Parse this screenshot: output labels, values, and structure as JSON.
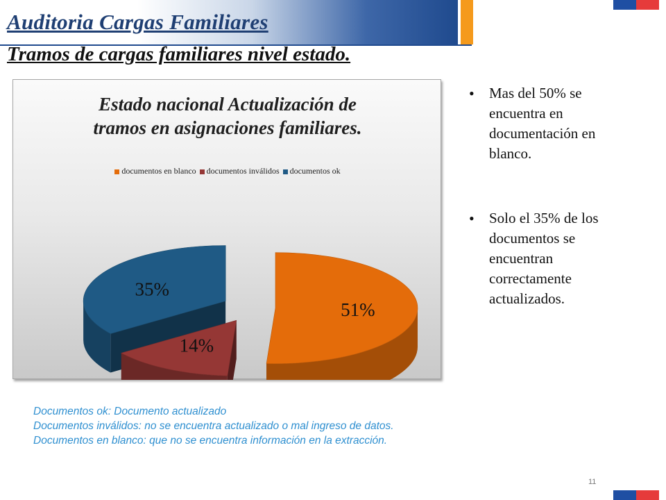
{
  "slide": {
    "title": "Auditoria Cargas Familiares",
    "subtitle": "Tramos de cargas familiares nivel estado.",
    "page_number": "11"
  },
  "chart_data": {
    "type": "pie",
    "title_line1": "Estado nacional Actualización de",
    "title_line2": "tramos en asignaciones familiares.",
    "legend_position": "top",
    "categories": [
      "documentos en blanco",
      "documentos inválidos",
      "documentos ok"
    ],
    "values": [
      51,
      14,
      35
    ],
    "labels": [
      "51%",
      "14%",
      "35%"
    ],
    "colors": [
      "#e46c0a",
      "#953735",
      "#1f5a85"
    ]
  },
  "bullets": [
    "Mas del 50% se encuentra en documentación en blanco.",
    "Solo el 35% de los documentos se encuentran correctamente actualizados."
  ],
  "notes": [
    "Documentos ok: Documento actualizado",
    "Documentos inválidos: no se encuentra actualizado o mal ingreso de datos.",
    "Documentos en blanco: que no se encuentra información en la extracción."
  ]
}
